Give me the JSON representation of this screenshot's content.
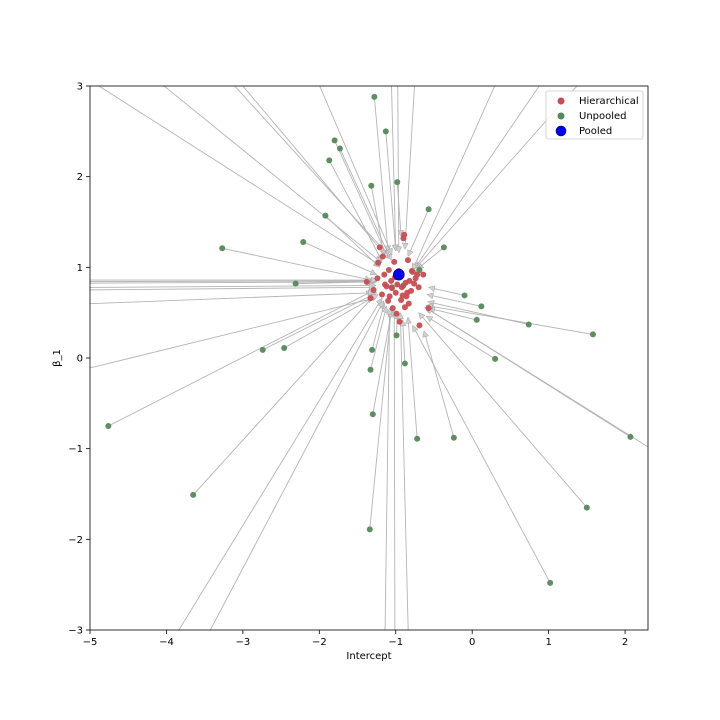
{
  "chart_data": {
    "type": "scatter",
    "title": "",
    "xlabel": "Intercept",
    "ylabel": "β_1",
    "xlim": [
      -5,
      2.3
    ],
    "ylim": [
      -3,
      3
    ],
    "xticks": [
      -5,
      -4,
      -3,
      -2,
      -1,
      0,
      1,
      2
    ],
    "yticks": [
      -3,
      -2,
      -1,
      0,
      1,
      2,
      3
    ],
    "xtick_labels": [
      "−5",
      "−4",
      "−3",
      "−2",
      "−1",
      "0",
      "1",
      "2"
    ],
    "ytick_labels": [
      "−3",
      "−2",
      "−1",
      "0",
      "1",
      "2",
      "3"
    ],
    "grid": false,
    "legend": {
      "placement": "top-right",
      "entries": [
        "Hierarchical",
        "Unpooled",
        "Pooled"
      ]
    },
    "colors": {
      "hierarchical": "#c44e52",
      "unpooled": "#55885a",
      "pooled": "#0000ee",
      "arrow": "#b4b4b4"
    },
    "pooled": {
      "x": -0.96,
      "y": 0.92
    },
    "series": [
      {
        "name": "Unpooled",
        "x": [
          -4.76,
          -3.65,
          -3.27,
          -2.74,
          -2.46,
          -2.21,
          -2.31,
          -1.92,
          -1.87,
          -1.8,
          -1.73,
          -1.32,
          -1.28,
          -1.13,
          -1.31,
          -1.33,
          -1.3,
          -1.34,
          -0.98,
          -0.99,
          -0.88,
          -0.72,
          -0.57,
          -0.37,
          -0.69,
          -0.24,
          -0.1,
          0.06,
          0.12,
          0.3,
          0.74,
          1.58,
          1.02,
          1.5,
          2.07,
          -1.05,
          -0.9
        ],
        "y": [
          -0.75,
          -1.51,
          1.21,
          0.09,
          0.11,
          1.28,
          0.82,
          1.57,
          2.18,
          2.4,
          2.31,
          1.9,
          2.88,
          2.5,
          0.09,
          -0.13,
          -0.62,
          -1.89,
          1.94,
          0.25,
          -0.06,
          -0.89,
          1.64,
          1.22,
          0.97,
          -0.88,
          0.69,
          0.42,
          0.57,
          -0.01,
          0.37,
          0.26,
          -2.48,
          -1.65,
          -0.87,
          0.78,
          0.8
        ]
      },
      {
        "name": "Hierarchical",
        "x": [
          -1.38,
          -1.33,
          -1.29,
          -1.24,
          -1.21,
          -1.18,
          -1.15,
          -1.12,
          -1.1,
          -1.08,
          -1.06,
          -1.04,
          -1.02,
          -1.0,
          -0.98,
          -0.96,
          -0.94,
          -0.92,
          -0.9,
          -0.88,
          -0.86,
          -0.84,
          -0.82,
          -0.8,
          -0.78,
          -0.76,
          -0.74,
          -0.72,
          -0.7,
          -0.69,
          -0.64,
          -0.57,
          -1.23,
          -1.05,
          -0.93,
          -1.09,
          -0.99,
          -0.87,
          -1.17,
          -1.01,
          -0.83,
          -0.91,
          -1.14,
          -0.95,
          -0.89,
          -0.79,
          -0.85
        ],
        "y": [
          0.84,
          0.66,
          0.75,
          0.88,
          1.22,
          0.7,
          0.92,
          0.79,
          0.63,
          0.68,
          0.85,
          0.55,
          1.06,
          0.72,
          0.81,
          0.96,
          0.9,
          0.78,
          1.32,
          0.56,
          0.68,
          1.08,
          0.85,
          0.74,
          0.95,
          0.82,
          0.88,
          0.92,
          0.78,
          0.36,
          0.92,
          0.55,
          1.05,
          0.77,
          0.64,
          0.97,
          0.49,
          0.83,
          1.12,
          0.89,
          0.6,
          0.69,
          0.81,
          0.4,
          1.36,
          0.96,
          0.72
        ]
      }
    ],
    "arrows": [
      {
        "from": [
          -4.76,
          -0.75
        ],
        "to": [
          -1.3,
          0.74
        ]
      },
      {
        "from": [
          -3.65,
          -1.51
        ],
        "to": [
          -1.27,
          0.7
        ]
      },
      {
        "from": [
          -3.27,
          1.21
        ],
        "to": [
          -1.32,
          0.86
        ]
      },
      {
        "from": [
          -2.74,
          0.09
        ],
        "to": [
          -1.25,
          0.72
        ]
      },
      {
        "from": [
          -2.46,
          0.11
        ],
        "to": [
          -1.23,
          0.7
        ]
      },
      {
        "from": [
          -2.21,
          1.28
        ],
        "to": [
          -1.25,
          0.92
        ]
      },
      {
        "from": [
          -2.31,
          0.82
        ],
        "to": [
          -1.3,
          0.84
        ]
      },
      {
        "from": [
          -1.92,
          1.57
        ],
        "to": [
          -1.21,
          1.0
        ]
      },
      {
        "from": [
          -1.87,
          2.18
        ],
        "to": [
          -1.18,
          1.07
        ]
      },
      {
        "from": [
          -1.8,
          2.4
        ],
        "to": [
          -1.1,
          1.1
        ]
      },
      {
        "from": [
          -1.73,
          2.31
        ],
        "to": [
          -1.06,
          1.08
        ]
      },
      {
        "from": [
          -1.32,
          1.9
        ],
        "to": [
          -1.15,
          1.12
        ]
      },
      {
        "from": [
          -1.28,
          2.88
        ],
        "to": [
          -1.1,
          1.17
        ]
      },
      {
        "from": [
          -1.13,
          2.5
        ],
        "to": [
          -1.0,
          1.18
        ]
      },
      {
        "from": [
          -1.31,
          0.09
        ],
        "to": [
          -1.15,
          0.61
        ]
      },
      {
        "from": [
          -1.33,
          -0.13
        ],
        "to": [
          -1.12,
          0.57
        ]
      },
      {
        "from": [
          -1.3,
          -0.62
        ],
        "to": [
          -1.05,
          0.54
        ]
      },
      {
        "from": [
          -1.34,
          -1.89
        ],
        "to": [
          -1.06,
          0.52
        ]
      },
      {
        "from": [
          -0.98,
          1.94
        ],
        "to": [
          -0.93,
          1.34
        ]
      },
      {
        "from": [
          -0.99,
          0.25
        ],
        "to": [
          -0.98,
          0.5
        ]
      },
      {
        "from": [
          -0.88,
          -0.06
        ],
        "to": [
          -0.91,
          0.42
        ]
      },
      {
        "from": [
          -0.72,
          -0.89
        ],
        "to": [
          -0.84,
          0.45
        ]
      },
      {
        "from": [
          -0.57,
          1.64
        ],
        "to": [
          -0.84,
          1.12
        ]
      },
      {
        "from": [
          -0.37,
          1.22
        ],
        "to": [
          -0.72,
          0.98
        ]
      },
      {
        "from": [
          -0.69,
          0.97
        ],
        "to": [
          -0.76,
          0.93
        ]
      },
      {
        "from": [
          -0.24,
          -0.88
        ],
        "to": [
          -0.63,
          0.3
        ]
      },
      {
        "from": [
          -0.1,
          0.69
        ],
        "to": [
          -0.57,
          0.78
        ]
      },
      {
        "from": [
          0.06,
          0.42
        ],
        "to": [
          -0.57,
          0.55
        ]
      },
      {
        "from": [
          0.12,
          0.57
        ],
        "to": [
          -0.59,
          0.7
        ]
      },
      {
        "from": [
          0.3,
          -0.01
        ],
        "to": [
          -0.6,
          0.46
        ]
      },
      {
        "from": [
          0.74,
          0.37
        ],
        "to": [
          -0.58,
          0.62
        ]
      },
      {
        "from": [
          1.58,
          0.26
        ],
        "to": [
          -0.6,
          0.58
        ]
      },
      {
        "from": [
          1.02,
          -2.48
        ],
        "to": [
          -0.78,
          0.36
        ]
      },
      {
        "from": [
          1.5,
          -1.65
        ],
        "to": [
          -0.7,
          0.5
        ]
      },
      {
        "from": [
          2.07,
          -0.87
        ],
        "to": [
          -0.62,
          0.56
        ]
      },
      {
        "from": [
          -6.5,
          0.82
        ],
        "to": [
          -1.25,
          0.84
        ]
      },
      {
        "from": [
          -6.5,
          0.84
        ],
        "to": [
          -1.25,
          0.85
        ]
      },
      {
        "from": [
          -6.5,
          0.86
        ],
        "to": [
          -1.24,
          0.86
        ]
      },
      {
        "from": [
          -6.5,
          0.77
        ],
        "to": [
          -1.26,
          0.8
        ]
      },
      {
        "from": [
          -6.5,
          0.74
        ],
        "to": [
          -1.27,
          0.78
        ]
      },
      {
        "from": [
          -6.5,
          0.55
        ],
        "to": [
          -1.28,
          0.72
        ]
      },
      {
        "from": [
          -6.5,
          -0.42
        ],
        "to": [
          -1.28,
          0.66
        ]
      },
      {
        "from": [
          -6.0,
          3.6
        ],
        "to": [
          -1.2,
          1.02
        ]
      },
      {
        "from": [
          -5.2,
          3.8
        ],
        "to": [
          -1.18,
          1.05
        ]
      },
      {
        "from": [
          -4.4,
          4.2
        ],
        "to": [
          -1.08,
          1.12
        ]
      },
      {
        "from": [
          -3.4,
          3.4
        ],
        "to": [
          -1.1,
          1.1
        ]
      },
      {
        "from": [
          -2.3,
          3.6
        ],
        "to": [
          -1.05,
          1.14
        ]
      },
      {
        "from": [
          -1.08,
          3.8
        ],
        "to": [
          -1.0,
          1.18
        ]
      },
      {
        "from": [
          -0.98,
          3.8
        ],
        "to": [
          -0.96,
          1.16
        ]
      },
      {
        "from": [
          -0.7,
          3.8
        ],
        "to": [
          -0.88,
          1.2
        ]
      },
      {
        "from": [
          2.0,
          3.6
        ],
        "to": [
          -0.74,
          0.99
        ]
      },
      {
        "from": [
          1.2,
          3.4
        ],
        "to": [
          -0.76,
          0.98
        ]
      },
      {
        "from": [
          0.4,
          3.2
        ],
        "to": [
          -0.78,
          0.97
        ]
      },
      {
        "from": [
          3.0,
          -1.35
        ],
        "to": [
          -0.6,
          0.55
        ]
      },
      {
        "from": [
          -4.2,
          -3.5
        ],
        "to": [
          -1.18,
          0.66
        ]
      },
      {
        "from": [
          -3.8,
          -3.6
        ],
        "to": [
          -1.16,
          0.63
        ]
      },
      {
        "from": [
          -1.15,
          -3.6
        ],
        "to": [
          -1.08,
          0.55
        ]
      },
      {
        "from": [
          -1.01,
          -3.6
        ],
        "to": [
          -1.02,
          0.54
        ]
      },
      {
        "from": [
          -0.82,
          -3.6
        ],
        "to": [
          -0.94,
          0.5
        ]
      }
    ]
  }
}
